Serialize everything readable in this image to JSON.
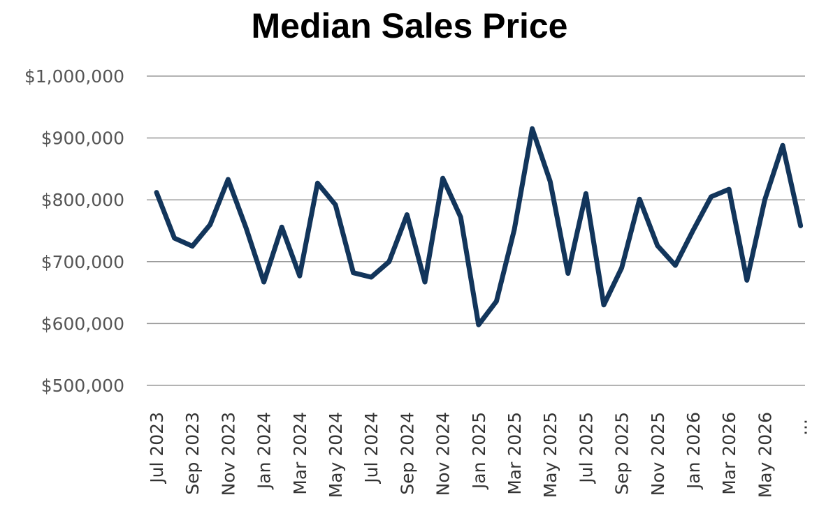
{
  "chart_data": {
    "type": "line",
    "title": "Median Sales Price",
    "xlabel": "",
    "ylabel": "",
    "ylim": [
      500000,
      1000000
    ],
    "yticks": [
      500000,
      600000,
      700000,
      800000,
      900000,
      1000000
    ],
    "ytick_labels": [
      "$500,000",
      "$600,000",
      "$700,000",
      "$800,000",
      "$900,000",
      "$1,000,000"
    ],
    "grid": true,
    "legend": "none",
    "x": [
      "Jul 2023",
      "Aug 2023",
      "Sep 2023",
      "Oct 2023",
      "Nov 2023",
      "Dec 2023",
      "Jan 2024",
      "Feb 2024",
      "Mar 2024",
      "Apr 2024",
      "May 2024",
      "Jun 2024",
      "Jul 2024",
      "Aug 2024",
      "Sep 2024",
      "Oct 2024",
      "Nov 2024",
      "Dec 2024",
      "Jan 2025",
      "Feb 2025",
      "Mar 2025",
      "Apr 2025",
      "May 2025",
      "Jun 2025",
      "Jul 2025",
      "Aug 2025",
      "Sep 2025",
      "Oct 2025",
      "Nov 2025",
      "Dec 2025",
      "Jan 2026",
      "Feb 2026",
      "Mar 2026",
      "Apr 2026",
      "May 2026",
      "Jun 2026",
      "Jul 2026"
    ],
    "xtick_labels": [
      "Jul 2023",
      "Sep 2023",
      "Nov 2023",
      "Jan 2024",
      "Mar 2024",
      "May 2024",
      "Jul 2024",
      "Sep 2024",
      "Nov 2024",
      "Jan 2025",
      "Mar 2025",
      "May 2025",
      "Jul 2025",
      "Sep 2025",
      "Nov 2025",
      "Jan 2026",
      "Mar 2026",
      "May 2026",
      "..."
    ],
    "series": [
      {
        "color": "#12355b",
        "values": [
          812000,
          738000,
          725000,
          760000,
          833000,
          755000,
          667000,
          756000,
          677000,
          827000,
          792000,
          682000,
          675000,
          700000,
          776000,
          667000,
          835000,
          772000,
          598000,
          636000,
          752000,
          915000,
          830000,
          681000,
          810000,
          630000,
          690000,
          801000,
          726000,
          694000,
          751000,
          805000,
          817000,
          670000,
          800000,
          888000,
          758000
        ]
      }
    ]
  }
}
